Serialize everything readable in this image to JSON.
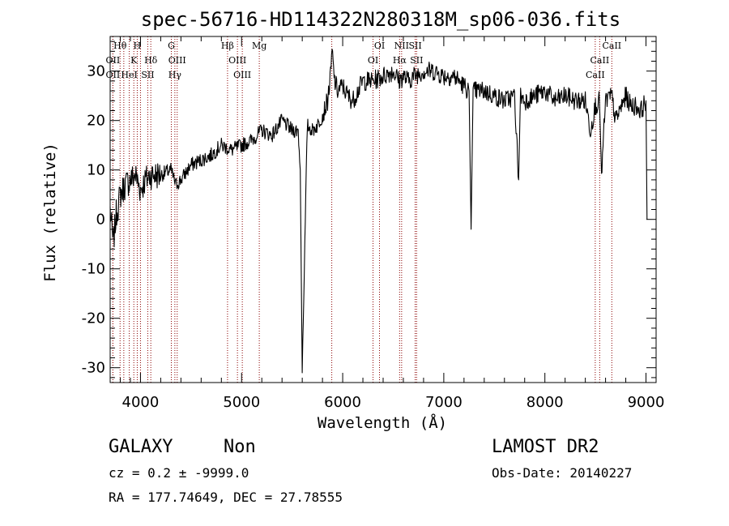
{
  "chart_data": {
    "type": "line",
    "title": "spec-56716-HD114322N280318M_sp06-036.fits",
    "xlabel": "Wavelength (Å)",
    "ylabel": "Flux (relative)",
    "xlim": [
      3700,
      9100
    ],
    "ylim": [
      -33,
      37
    ],
    "x_ticks": [
      4000,
      5000,
      6000,
      7000,
      8000,
      9000
    ],
    "y_ticks": [
      -30,
      -20,
      -10,
      0,
      10,
      20,
      30
    ],
    "grid": false,
    "line_color": "#000000",
    "marker_color": "#8b0000",
    "series": [
      {
        "x": [
          3700,
          3730,
          3760,
          3800,
          3850,
          3900,
          3950,
          4000,
          4050,
          4100,
          4200,
          4300,
          4350,
          4400,
          4500,
          4600,
          4700,
          4800,
          4900,
          5000,
          5100,
          5200,
          5300,
          5400,
          5500,
          5560,
          5580,
          5600,
          5650,
          5700,
          5750,
          5800,
          5850,
          5880,
          5895,
          5920,
          5950,
          6000,
          6050,
          6100,
          6200,
          6300,
          6400,
          6500,
          6560,
          6600,
          6650,
          6700,
          6800,
          6900,
          7000,
          7100,
          7200,
          7250,
          7270,
          7290,
          7300,
          7400,
          7500,
          7600,
          7700,
          7740,
          7760,
          7800,
          7900,
          8000,
          8100,
          8200,
          8300,
          8400,
          8450,
          8500,
          8540,
          8560,
          8600,
          8660,
          8700,
          8800,
          8850,
          8900,
          8950,
          9000,
          9010
        ],
        "y": [
          2,
          -5,
          1,
          5,
          7,
          8,
          9,
          6,
          8,
          9,
          9,
          10,
          7,
          8,
          11,
          12,
          13,
          15,
          14,
          15,
          16,
          18,
          17,
          20,
          18,
          18,
          10,
          -30,
          19,
          18,
          19,
          21,
          24,
          29,
          34,
          28,
          26,
          27,
          25,
          24,
          28,
          28,
          29,
          30,
          28,
          29,
          28,
          29,
          30,
          30,
          29,
          29,
          27,
          26,
          -2,
          25,
          26,
          26,
          25,
          24,
          25,
          8,
          25,
          24,
          25,
          26,
          24,
          25,
          24,
          24,
          18,
          23,
          24,
          9,
          24,
          25,
          20,
          25,
          23,
          23,
          22,
          24,
          0
        ]
      }
    ],
    "lines": [
      {
        "name": "Hθ",
        "wl": 3798,
        "row": 0
      },
      {
        "name": "H",
        "wl": 3968,
        "row": 0
      },
      {
        "name": "G",
        "wl": 4305,
        "row": 0
      },
      {
        "name": "Hβ",
        "wl": 4861,
        "row": 0
      },
      {
        "name": "Mg",
        "wl": 5175,
        "row": 0
      },
      {
        "name": "NII",
        "wl": 6583,
        "row": 0
      },
      {
        "name": "SII",
        "wl": 6717,
        "row": 0
      },
      {
        "name": "CaII",
        "wl": 8662,
        "row": 0
      },
      {
        "name": "OII",
        "wl": 3727,
        "row": 1
      },
      {
        "name": "K",
        "wl": 3934,
        "row": 1
      },
      {
        "name": "Hδ",
        "wl": 4102,
        "row": 1
      },
      {
        "name": "OIII",
        "wl": 4363,
        "row": 1
      },
      {
        "name": "OIII",
        "wl": 4959,
        "row": 1
      },
      {
        "name": "OI",
        "wl": 6300,
        "row": 1
      },
      {
        "name": "OI",
        "wl": 6364,
        "row": 0
      },
      {
        "name": "Hα",
        "wl": 6563,
        "row": 1
      },
      {
        "name": "SII",
        "wl": 6731,
        "row": 1
      },
      {
        "name": "CaII",
        "wl": 8542,
        "row": 1
      },
      {
        "name": "CaII",
        "wl": 8498,
        "row": 2
      },
      {
        "name": "OII",
        "wl": 3727,
        "row": 2
      },
      {
        "name": "HeI",
        "wl": 3889,
        "row": 2
      },
      {
        "name": "SII",
        "wl": 4072,
        "row": 2
      },
      {
        "name": "Hγ",
        "wl": 4340,
        "row": 2
      },
      {
        "name": "OIII",
        "wl": 5007,
        "row": 2
      }
    ],
    "extra_markers": [
      3835,
      4000,
      5892
    ]
  },
  "info": {
    "class": "GALAXY",
    "subclass": "Non",
    "cz": "cz = 0.2 ± -9999.0",
    "radec": "RA = 177.74649, DEC =  27.78555",
    "survey": "LAMOST DR2",
    "obsdate": "Obs-Date: 20140227"
  }
}
